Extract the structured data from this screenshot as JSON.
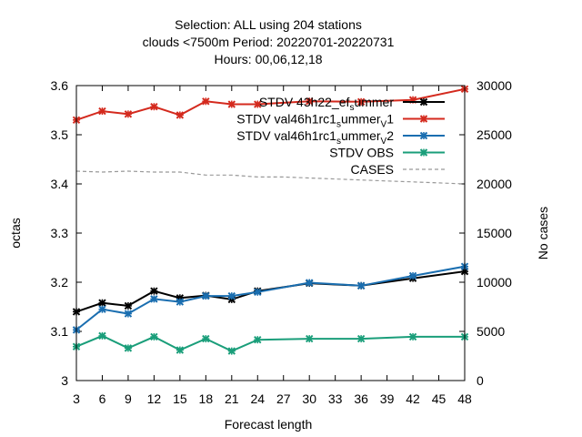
{
  "chart_data": {
    "type": "line",
    "title_lines": [
      "Selection: ALL using   204 stations",
      "clouds <7500m   Period: 20220701-20220731",
      "Hours:  00,06,12,18"
    ],
    "xlabel": "Forecast length",
    "ylabel": "octas",
    "y2label": "No cases",
    "xlim": [
      3,
      48
    ],
    "ylim": [
      3.0,
      3.6
    ],
    "y2lim": [
      0,
      30000
    ],
    "xticks": [
      3,
      6,
      9,
      12,
      15,
      18,
      21,
      24,
      27,
      30,
      33,
      36,
      39,
      42,
      45,
      48
    ],
    "yticks": [
      "3",
      "3.1",
      "3.2",
      "3.3",
      "3.4",
      "3.5",
      "3.6"
    ],
    "y2ticks": [
      "0",
      "5000",
      "10000",
      "15000",
      "20000",
      "25000",
      "30000"
    ],
    "legend_position": "top-right",
    "grid": false,
    "series": [
      {
        "name": "STDV 43h22_ef_s ummer",
        "legend_parts": [
          [
            "STDV 43h22_ef",
            ""
          ],
          [
            "s",
            "sub"
          ],
          [
            "ummer",
            ""
          ]
        ],
        "color": "#000000",
        "axis": "y1",
        "marker": "star",
        "x": [
          3,
          6,
          9,
          12,
          15,
          18,
          21,
          24,
          30,
          36,
          42,
          48
        ],
        "values": [
          3.14,
          3.158,
          3.152,
          3.182,
          3.168,
          3.173,
          3.165,
          3.182,
          3.198,
          3.193,
          3.208,
          3.222
        ]
      },
      {
        "name": "STDV val46h1rc1_s ummer_v 1",
        "legend_parts": [
          [
            "STDV val46h1rc1",
            ""
          ],
          [
            "s",
            "sub"
          ],
          [
            "ummer",
            ""
          ],
          [
            "V",
            "sub"
          ],
          [
            "1",
            ""
          ]
        ],
        "color": "#d42a1e",
        "axis": "y1",
        "marker": "star",
        "x": [
          3,
          6,
          9,
          12,
          15,
          18,
          21,
          24,
          30,
          36,
          42,
          48
        ],
        "values": [
          3.53,
          3.548,
          3.542,
          3.557,
          3.54,
          3.568,
          3.562,
          3.562,
          3.568,
          3.567,
          3.571,
          3.593
        ]
      },
      {
        "name": "STDV val46h1rc1_s ummer_v 2",
        "legend_parts": [
          [
            "STDV val46h1rc1",
            ""
          ],
          [
            "s",
            "sub"
          ],
          [
            "ummer",
            ""
          ],
          [
            "V",
            "sub"
          ],
          [
            "2",
            ""
          ]
        ],
        "color": "#1a6eb0",
        "axis": "y1",
        "marker": "star",
        "x": [
          3,
          6,
          9,
          12,
          15,
          18,
          21,
          24,
          30,
          36,
          42,
          48
        ],
        "values": [
          3.103,
          3.145,
          3.136,
          3.166,
          3.16,
          3.172,
          3.172,
          3.18,
          3.199,
          3.193,
          3.213,
          3.232
        ]
      },
      {
        "name": "STDV OBS",
        "legend_parts": [
          [
            "STDV OBS",
            ""
          ]
        ],
        "color": "#1a9e7a",
        "axis": "y1",
        "marker": "star",
        "x": [
          3,
          6,
          9,
          12,
          15,
          18,
          21,
          24,
          30,
          36,
          42,
          48
        ],
        "values": [
          3.069,
          3.091,
          3.066,
          3.089,
          3.062,
          3.085,
          3.06,
          3.083,
          3.085,
          3.085,
          3.089,
          3.089
        ]
      },
      {
        "name": "CASES",
        "legend_parts": [
          [
            "CASES",
            ""
          ]
        ],
        "color": "#999999",
        "axis": "y2",
        "marker": "none",
        "dashed": true,
        "x": [
          3,
          6,
          9,
          12,
          15,
          18,
          21,
          24,
          27,
          30,
          33,
          36,
          39,
          42,
          45,
          48
        ],
        "values": [
          21300,
          21200,
          21300,
          21200,
          21200,
          20900,
          20900,
          20700,
          20700,
          20600,
          20500,
          20400,
          20300,
          20200,
          20100,
          20000
        ]
      }
    ]
  }
}
